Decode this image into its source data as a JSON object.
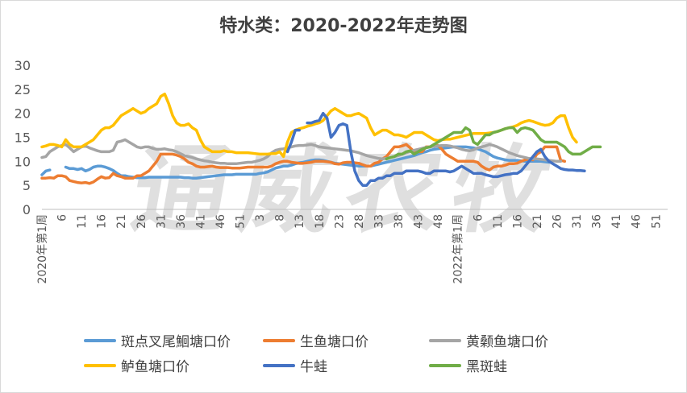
{
  "chart_data": {
    "type": "line",
    "title": "特水类：2020-2022年走势图",
    "watermark": "通威农牧",
    "ylim": [
      0,
      30
    ],
    "yticks": [
      0,
      5,
      10,
      15,
      20,
      25,
      30
    ],
    "xlabels": [
      "2020年第1周",
      "6",
      "11",
      "16",
      "21",
      "26",
      "31",
      "36",
      "41",
      "46",
      "51",
      "3",
      "8",
      "13",
      "18",
      "23",
      "28",
      "33",
      "38",
      "43",
      "48",
      "2022年第1周",
      "6",
      "11",
      "16",
      "21",
      "26",
      "31",
      "36",
      "41",
      "46",
      "51"
    ],
    "series": [
      {
        "name": "斑点叉尾鮰塘口价",
        "color": "#5b9bd5",
        "values": [
          7.2,
          8,
          8.2,
          null,
          null,
          null,
          8.8,
          8.5,
          8.5,
          8.3,
          8.5,
          8,
          8.3,
          8.8,
          9,
          9,
          8.8,
          8.5,
          8.1,
          7.5,
          7,
          7,
          6.8,
          6.7,
          6.6,
          6.6,
          6.6,
          6.7,
          6.7,
          6.7,
          6.7,
          6.7,
          6.7,
          6.7,
          6.7,
          6.7,
          6.6,
          6.6,
          6.5,
          6.5,
          6.6,
          6.7,
          6.8,
          6.9,
          7,
          7.1,
          7.2,
          7.2,
          7.2,
          7.3,
          7.3,
          7.3,
          7.3,
          7.3,
          7.3,
          7.5,
          7.6,
          7.8,
          8.2,
          8.6,
          8.8,
          9,
          9,
          9.2,
          9.5,
          9.7,
          9.8,
          10,
          10.2,
          10.3,
          10.3,
          10.2,
          10,
          9.8,
          9.6,
          9.5,
          9.4,
          9.3,
          9.2,
          9.1,
          9,
          9,
          9,
          9,
          9.2,
          9.4,
          9.6,
          9.8,
          10,
          10.2,
          10.4,
          10.6,
          10.8,
          11,
          11.2,
          11.5,
          11.8,
          12,
          12.3,
          12.5,
          12.6,
          12.7,
          12.8,
          12.9,
          13,
          13,
          13,
          13,
          12.9,
          12.8,
          12.6,
          12.3,
          12,
          11.5,
          11,
          10.7,
          10.5,
          10.3,
          10.2,
          10.2,
          10.2,
          10.1,
          10,
          10,
          10,
          10,
          10,
          9.9,
          9.8
        ]
      },
      {
        "name": "生鱼塘口价",
        "color": "#ed7d31",
        "values": [
          6.5,
          6.5,
          6.6,
          6.5,
          7,
          7,
          6.8,
          6,
          5.8,
          5.6,
          5.5,
          5.6,
          5.4,
          5.7,
          6.3,
          6.8,
          6.5,
          6.6,
          7.5,
          7,
          6.8,
          6.5,
          6.5,
          6.5,
          7,
          7,
          7.5,
          8,
          9,
          10,
          11.5,
          11.5,
          11.5,
          11.5,
          11.3,
          11,
          10.5,
          9.8,
          9.5,
          9,
          8.8,
          8.8,
          8.9,
          9,
          8.8,
          8.7,
          8.7,
          8.7,
          8.6,
          8.6,
          8.6,
          8.7,
          8.8,
          8.8,
          8.8,
          8.8,
          8.8,
          8.8,
          9,
          9.5,
          9.8,
          10,
          10,
          9.8,
          9.7,
          9.6,
          9.6,
          9.7,
          9.8,
          10,
          10,
          10,
          9.9,
          9.8,
          9.5,
          9.4,
          9.7,
          9.8,
          9.8,
          9.7,
          9.6,
          9.3,
          9,
          9,
          9.6,
          9.8,
          10.5,
          11,
          12,
          13,
          13,
          13.2,
          13.5,
          12.8,
          12,
          12,
          12,
          13,
          13,
          13.2,
          13.3,
          12.5,
          11.5,
          11,
          10.5,
          10,
          10,
          10,
          10,
          10,
          9.8,
          9,
          8.5,
          8.2,
          8.8,
          9,
          9,
          9.2,
          9.5,
          9.5,
          9.6,
          10,
          10.3,
          10.5,
          10.3,
          11.5,
          12,
          13,
          13,
          13,
          13,
          10.2,
          10
        ]
      },
      {
        "name": "黄颡鱼塘口价",
        "color": "#a5a5a5",
        "values": [
          10.8,
          11,
          12,
          12.5,
          13,
          13.3,
          13.5,
          12.8,
          12,
          12.5,
          13,
          13.2,
          12.8,
          12.5,
          12.2,
          12,
          12,
          12,
          12.3,
          14,
          14.2,
          14.5,
          14,
          13.5,
          13,
          12.8,
          13,
          13,
          12.7,
          12.5,
          12.5,
          12.6,
          12.4,
          12.3,
          12,
          11.6,
          11.2,
          11,
          10.8,
          10.5,
          10.3,
          10.1,
          10,
          9.8,
          9.7,
          9.6,
          9.6,
          9.5,
          9.5,
          9.5,
          9.6,
          9.7,
          9.8,
          9.8,
          10,
          10.2,
          10.5,
          11,
          11.8,
          12.3,
          12.5,
          12.6,
          12.8,
          13,
          13.2,
          13.3,
          13.3,
          13.4,
          13.5,
          13.3,
          13,
          12.9,
          12.8,
          12.7,
          12.6,
          12.5,
          12.4,
          12.3,
          12.2,
          12,
          11.8,
          11.5,
          11.2,
          11,
          10.8,
          10.6,
          10.5,
          10.6,
          10.8,
          11,
          11.2,
          11.5,
          11.8,
          12,
          12.3,
          12.5,
          12.7,
          12.9,
          13,
          13.1,
          13.2,
          13.3,
          13.3,
          13.2,
          13,
          12.8,
          12.5,
          12.3,
          12.2,
          12.4,
          12.8,
          13,
          13.2,
          13.5,
          13.3,
          13,
          12.6,
          12.2,
          11.8,
          11.5,
          11.2,
          11,
          10.8,
          10.6,
          10.5,
          10.5,
          10.4,
          10.3,
          10.2,
          10.1,
          10,
          10
        ]
      },
      {
        "name": "鲈鱼塘口价",
        "color": "#ffc000",
        "values": [
          13,
          13.2,
          13.5,
          13.5,
          13.3,
          13,
          14.5,
          13.5,
          13,
          13,
          13,
          13.5,
          14,
          14.5,
          15.5,
          16.5,
          17,
          17,
          17.5,
          18.5,
          19.5,
          20,
          20.5,
          21,
          20.5,
          20,
          20.3,
          21,
          21.5,
          22,
          23.5,
          24,
          22,
          19.5,
          18,
          17.5,
          17.5,
          17.8,
          17,
          16.5,
          14.5,
          13,
          12.5,
          12,
          12,
          12,
          12.2,
          12,
          12,
          11.8,
          11.8,
          11.8,
          11.8,
          11.7,
          11.6,
          11.5,
          11.5,
          11.5,
          11.6,
          11.6,
          12,
          11,
          14,
          16,
          16.5,
          16.8,
          17,
          17.3,
          17.5,
          17.8,
          18,
          18.5,
          19.5,
          20.5,
          21,
          20.5,
          20,
          19.5,
          19.5,
          19.8,
          20,
          19.5,
          19,
          17,
          15.5,
          16,
          16.5,
          16.5,
          16,
          15.5,
          15.5,
          15.3,
          15,
          15.5,
          16,
          16,
          16,
          15.5,
          15,
          14.5,
          14.3,
          14.5,
          14.6,
          14.6,
          14.8,
          15,
          15.2,
          15.4,
          15.6,
          15.8,
          15.8,
          15.8,
          15.8,
          15.9,
          16,
          16.2,
          16.5,
          16.8,
          17,
          17.2,
          17.5,
          18,
          18.3,
          18.5,
          18.3,
          18,
          17.7,
          17.5,
          17.6,
          18,
          19,
          19.5,
          19.5,
          17,
          15,
          14
        ]
      },
      {
        "name": "牛蛙",
        "color": "#4472c4",
        "values": [
          null,
          null,
          null,
          null,
          null,
          null,
          null,
          null,
          null,
          null,
          null,
          null,
          null,
          null,
          null,
          null,
          null,
          null,
          null,
          null,
          null,
          null,
          null,
          null,
          null,
          null,
          null,
          null,
          null,
          null,
          null,
          null,
          null,
          null,
          null,
          null,
          null,
          null,
          null,
          null,
          null,
          null,
          null,
          null,
          null,
          null,
          null,
          null,
          null,
          null,
          null,
          null,
          null,
          null,
          null,
          null,
          null,
          null,
          null,
          null,
          null,
          null,
          12,
          14,
          16.5,
          16.5,
          null,
          18,
          18,
          18.3,
          18.5,
          20,
          19,
          15,
          16,
          17.5,
          17.8,
          17.5,
          12,
          8,
          6,
          5,
          5,
          6,
          6,
          6.5,
          6.5,
          7,
          7,
          7.5,
          7.5,
          7.5,
          8,
          8,
          8,
          8,
          7.8,
          7.5,
          7.5,
          8,
          8,
          8,
          8,
          7.8,
          8,
          8.5,
          9,
          8.5,
          8,
          7.5,
          7.5,
          7.5,
          7.2,
          7,
          6.8,
          6.8,
          7,
          7.2,
          7.3,
          7.5,
          7.5,
          8,
          9,
          10,
          11,
          12,
          12.5,
          11,
          10,
          9.5,
          9,
          8.5,
          8.3,
          8.2,
          8.2,
          8.1,
          8.1,
          8
        ]
      },
      {
        "name": "黑斑蛙",
        "color": "#70ad47",
        "values": [
          null,
          null,
          null,
          null,
          null,
          null,
          null,
          null,
          null,
          null,
          null,
          null,
          null,
          null,
          null,
          null,
          null,
          null,
          null,
          null,
          null,
          null,
          null,
          null,
          null,
          null,
          null,
          null,
          null,
          null,
          null,
          null,
          null,
          null,
          null,
          null,
          null,
          null,
          null,
          null,
          null,
          null,
          null,
          null,
          null,
          null,
          null,
          null,
          null,
          null,
          null,
          null,
          null,
          null,
          null,
          null,
          null,
          null,
          null,
          null,
          null,
          null,
          null,
          null,
          null,
          null,
          null,
          null,
          null,
          null,
          null,
          null,
          null,
          null,
          null,
          null,
          null,
          null,
          null,
          null,
          null,
          null,
          null,
          null,
          null,
          null,
          null,
          10.5,
          10.8,
          11,
          11.5,
          11.5,
          12,
          12.2,
          11.5,
          12,
          12.5,
          12.8,
          13,
          13.5,
          14,
          14.5,
          15,
          15.5,
          16,
          16,
          16,
          17,
          16.5,
          14,
          13.5,
          14.5,
          15.5,
          15.5,
          16,
          16.2,
          16.5,
          16.8,
          17,
          17,
          16,
          16.8,
          17,
          16.8,
          16.5,
          15.5,
          14.5,
          14,
          14,
          14,
          14,
          13.5,
          13,
          12,
          11.5,
          11.5,
          11.5,
          12,
          12.5,
          13,
          13,
          13
        ]
      }
    ]
  }
}
